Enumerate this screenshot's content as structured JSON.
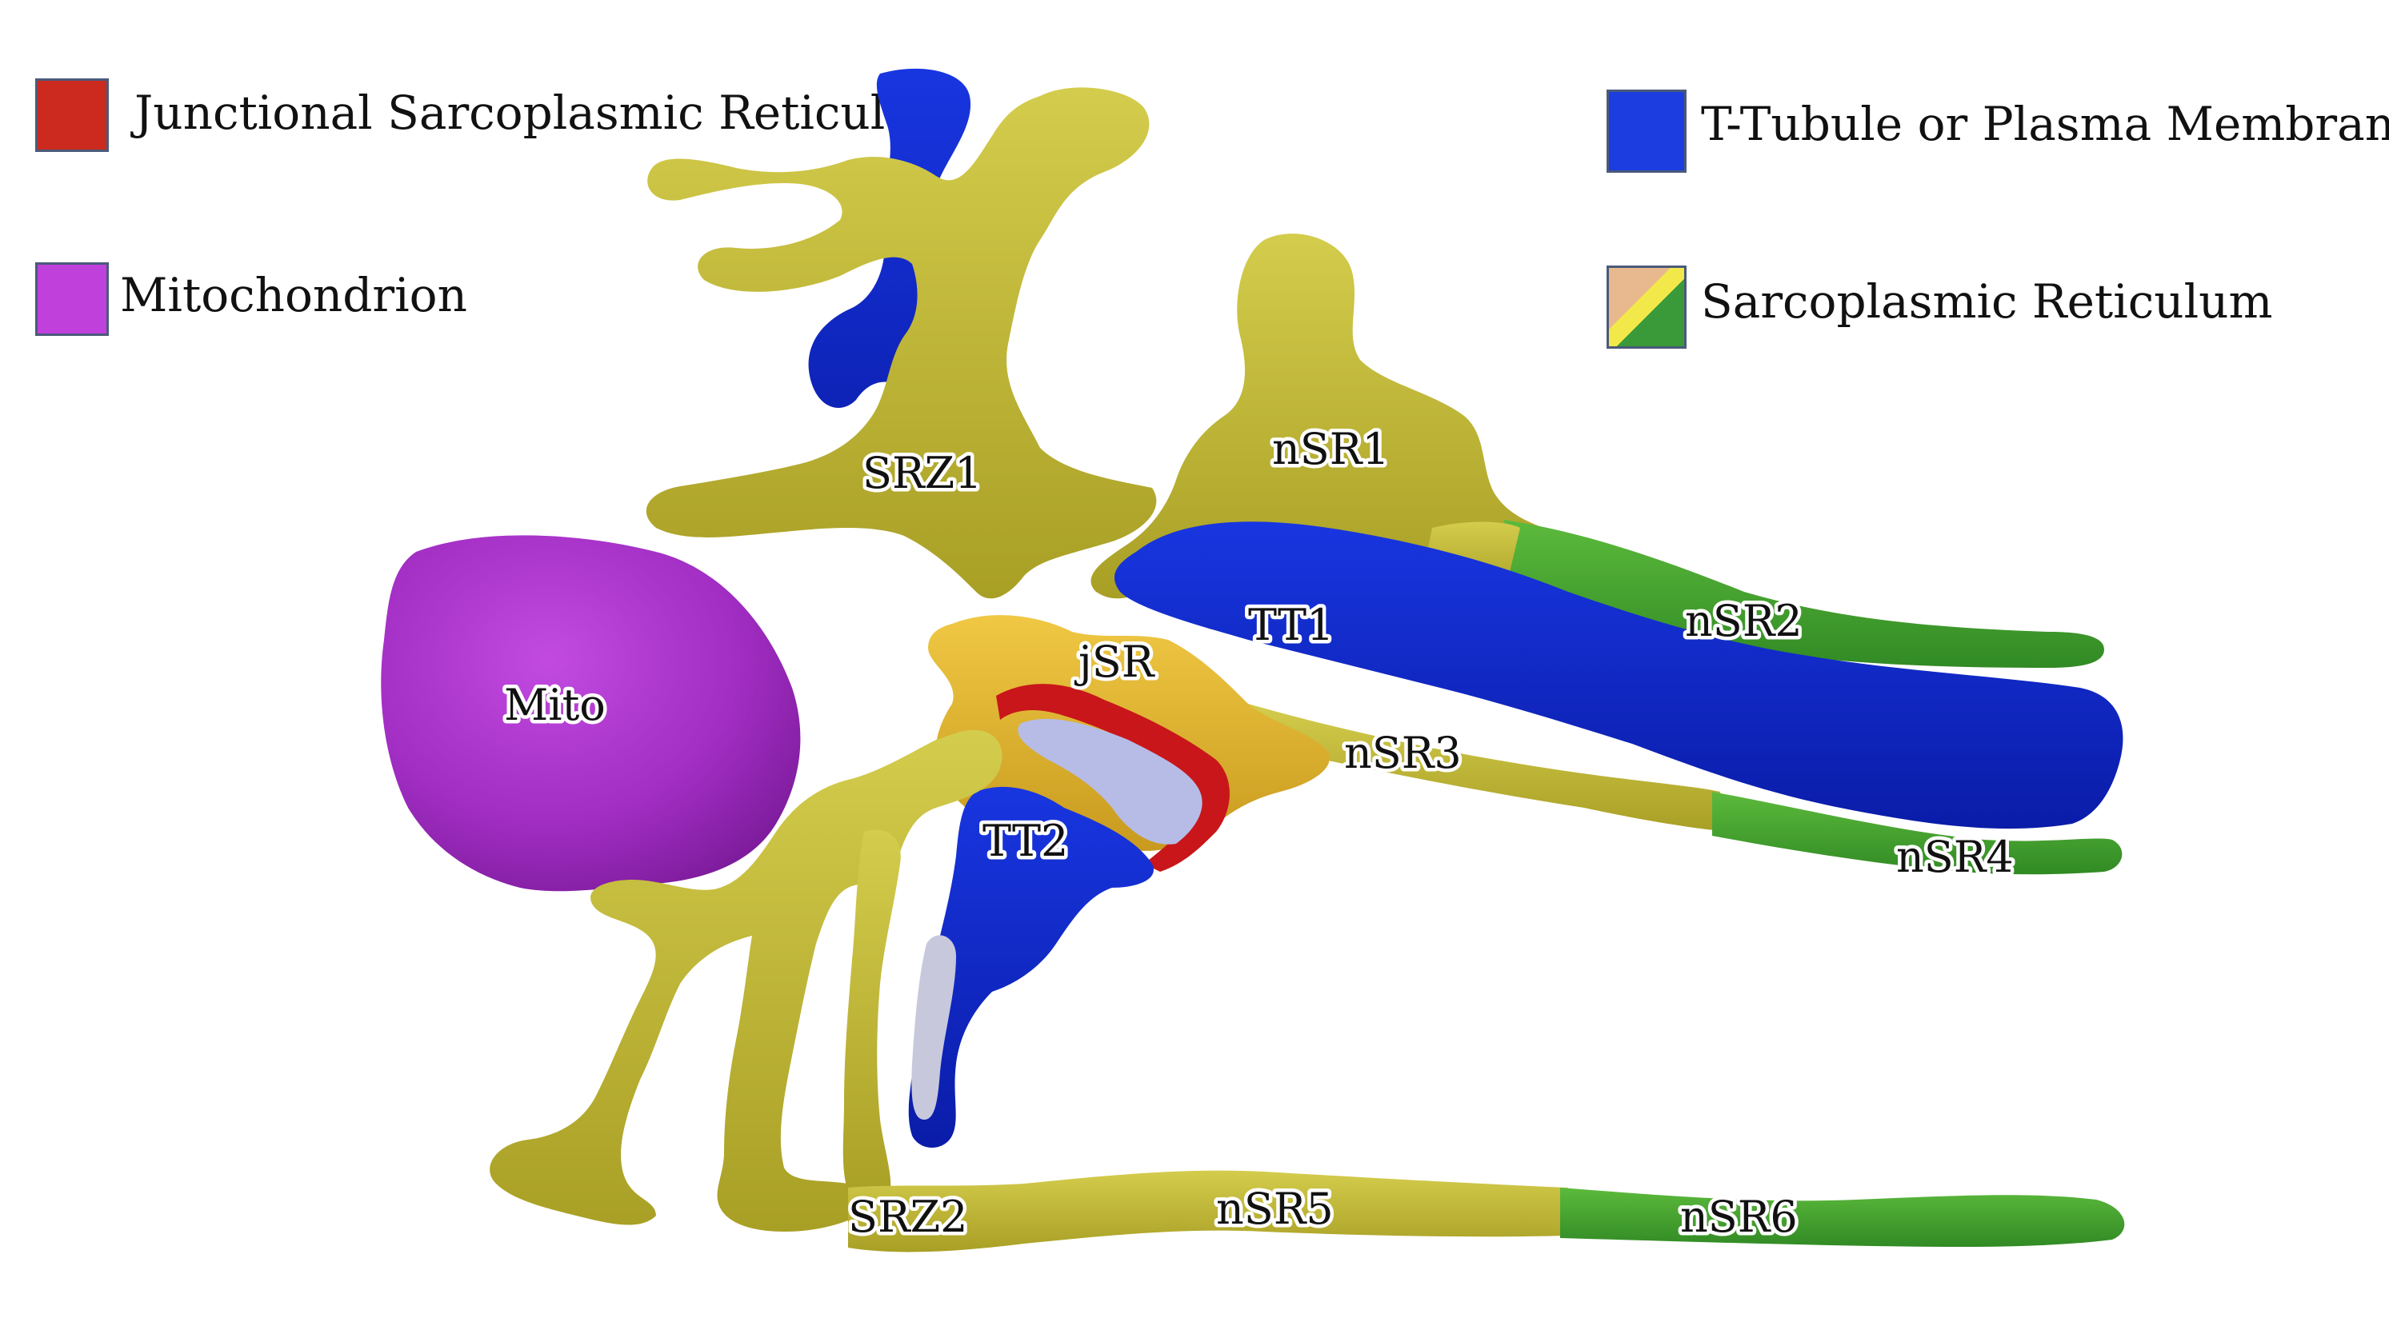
{
  "legend": {
    "jsr": {
      "label": "Junctional Sarcoplasmic Reticulum",
      "color": "#cc2a1e"
    },
    "mito": {
      "label": "Mitochondrion",
      "color": "#c040dc"
    },
    "tt": {
      "label": "T-Tubule or Plasma Membrane",
      "color": "#1c3de0"
    },
    "sr": {
      "label": "Sarcoplasmic Reticulum",
      "color_a": "#3a9a3a",
      "color_b": "#e8b88e",
      "stripe": "#f2e84a"
    }
  },
  "colors": {
    "sr_yellow": "#c6be3c",
    "sr_yellow_dark": "#a39a22",
    "sr_green": "#4aa832",
    "tt_blue": "#0f2ad0",
    "jsr_gold": "#e2b83a",
    "jsr_red": "#c8161a",
    "mito_purple": "#b336d2",
    "cleft": "#b6bce6"
  },
  "labels": {
    "srz1": "SRZ1",
    "nsr1": "nSR1",
    "tt1": "TT1",
    "nsr2": "nSR2",
    "jsr": "jSR",
    "mito": "Mito",
    "nsr3": "nSR3",
    "tt2": "TT2",
    "nsr4": "nSR4",
    "srz2": "SRZ2",
    "nsr5": "nSR5",
    "nsr6": "nSR6"
  }
}
